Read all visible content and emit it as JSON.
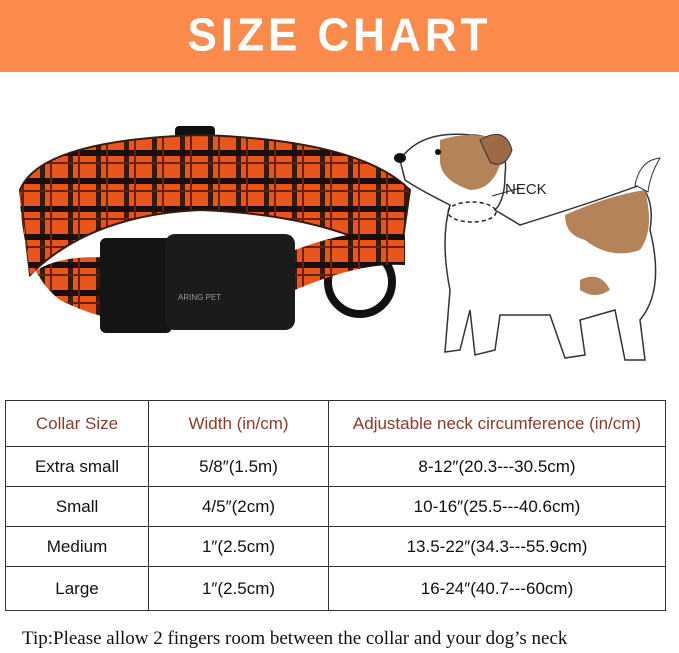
{
  "header": {
    "title": "SIZE CHART",
    "color": "#fb8a4d"
  },
  "illustration": {
    "brand": "ARING PET",
    "neck_label": "NECK"
  },
  "table": {
    "headers": [
      "Collar Size",
      "Width (in/cm)",
      "Adjustable neck circumference (in/cm)"
    ],
    "rows": [
      [
        "Extra small",
        "5/8″(1.5m)",
        "8-12″(20.3---30.5cm)"
      ],
      [
        "Small",
        "4/5″(2cm)",
        "10-16″(25.5---40.6cm)"
      ],
      [
        "Medium",
        "1″(2.5cm)",
        "13.5-22″(34.3---55.9cm)"
      ],
      [
        "Large",
        "1″(2.5cm)",
        "16-24″(40.7---60cm)"
      ]
    ]
  },
  "tip": "Tip:Please allow 2 fingers room between the collar and your dog’s neck"
}
